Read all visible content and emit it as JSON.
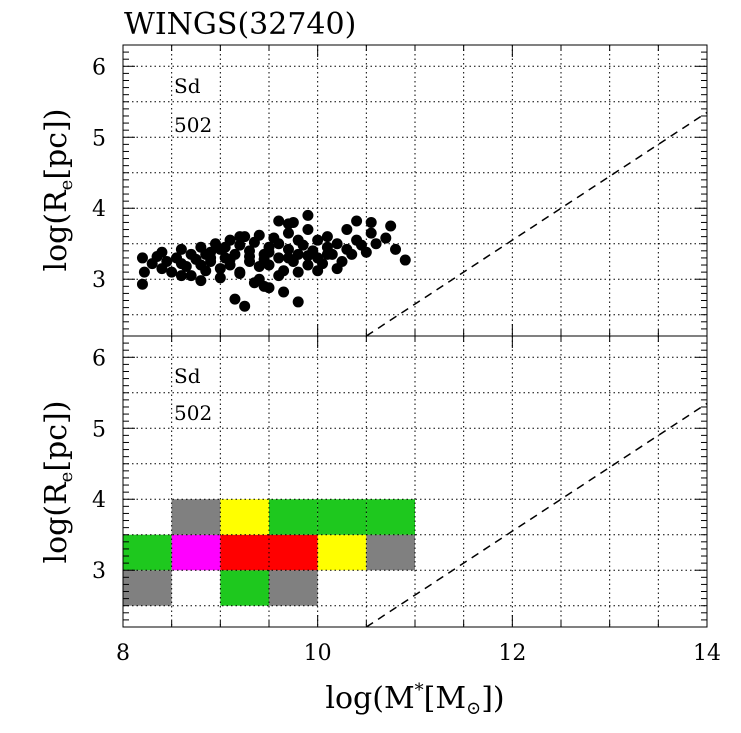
{
  "figure_title": "WINGS(32740)",
  "chart_data": [
    {
      "type": "scatter",
      "panel": "top",
      "ylabel_base": "log(R",
      "ylabel_sub": "e",
      "ylabel_tail": "[pc])",
      "xlim": [
        8,
        14
      ],
      "ylim": [
        2.2,
        6.3
      ],
      "x_gridlines": [
        8,
        8.5,
        9,
        9.5,
        10,
        10.5,
        11,
        11.5,
        12,
        12.5,
        13,
        13.5,
        14
      ],
      "y_gridlines": [
        2.5,
        3,
        3.5,
        4,
        4.5,
        5,
        5.5,
        6
      ],
      "ytick_labels": [
        "3",
        "4",
        "5",
        "6"
      ],
      "ytick_values": [
        3,
        4,
        5,
        6
      ],
      "annotation_type": "Sd",
      "annotation_count": "502",
      "dashed_line": {
        "x": [
          10.5,
          14
        ],
        "y": [
          2.2,
          5.35
        ]
      },
      "points_x": [
        8.2,
        8.22,
        8.2,
        8.3,
        8.35,
        8.4,
        8.45,
        8.4,
        8.5,
        8.55,
        8.6,
        8.6,
        8.65,
        8.7,
        8.7,
        8.75,
        8.8,
        8.8,
        8.85,
        8.9,
        8.9,
        8.95,
        9.0,
        9.0,
        9.05,
        9.1,
        9.1,
        9.15,
        9.2,
        9.2,
        9.25,
        9.3,
        9.3,
        9.35,
        9.4,
        9.4,
        9.45,
        9.5,
        9.5,
        9.55,
        9.6,
        9.6,
        9.65,
        9.7,
        9.7,
        9.75,
        9.8,
        9.8,
        9.85,
        9.9,
        9.9,
        9.95,
        10.0,
        10.0,
        10.05,
        10.1,
        10.1,
        10.15,
        10.2,
        10.25,
        10.3,
        10.3,
        10.35,
        10.4,
        10.45,
        10.5,
        10.55,
        10.6,
        10.7,
        10.75,
        10.8,
        10.9,
        8.6,
        8.8,
        9.0,
        9.2,
        9.4,
        9.6,
        9.8,
        10.0,
        10.2,
        8.9,
        9.1,
        9.3,
        9.5,
        9.7,
        9.9,
        10.1,
        9.15,
        9.35,
        9.5,
        9.65,
        9.8,
        9.25,
        9.45,
        9.7,
        9.75,
        8.85,
        9.05,
        9.9,
        9.6,
        10.4,
        10.55,
        9.45,
        9.2
      ],
      "points_y": [
        3.3,
        3.1,
        2.93,
        3.22,
        3.32,
        3.15,
        3.25,
        3.38,
        3.1,
        3.3,
        3.22,
        3.42,
        3.18,
        3.35,
        3.05,
        3.28,
        3.2,
        3.45,
        3.12,
        3.38,
        3.25,
        3.5,
        3.15,
        3.42,
        3.3,
        3.55,
        3.2,
        3.35,
        3.48,
        3.1,
        3.6,
        3.25,
        3.4,
        3.52,
        3.18,
        3.62,
        3.35,
        3.45,
        3.2,
        3.58,
        3.3,
        3.5,
        3.12,
        3.42,
        3.65,
        3.25,
        3.55,
        3.35,
        3.48,
        3.2,
        3.7,
        3.4,
        3.3,
        3.55,
        3.22,
        3.45,
        3.6,
        3.35,
        3.5,
        3.25,
        3.42,
        3.7,
        3.35,
        3.55,
        3.48,
        3.38,
        3.65,
        3.5,
        3.58,
        3.75,
        3.42,
        3.27,
        3.05,
        2.98,
        3.02,
        3.08,
        3.0,
        3.05,
        3.1,
        3.12,
        3.15,
        3.3,
        3.28,
        3.32,
        3.38,
        3.3,
        3.33,
        3.35,
        2.72,
        2.95,
        2.88,
        2.82,
        2.68,
        2.62,
        2.9,
        3.78,
        3.8,
        3.35,
        3.45,
        3.9,
        3.82,
        3.82,
        3.8,
        3.28,
        3.6
      ],
      "marker_color": "#000000"
    },
    {
      "type": "heatmap",
      "panel": "bottom",
      "ylabel_base": "log(R",
      "ylabel_sub": "e",
      "ylabel_tail": "[pc])",
      "xlabel_base": "log(M",
      "xlabel_sup": "*",
      "xlabel_mid": "[M",
      "xlabel_sub": "⊙",
      "xlabel_tail": "])",
      "xlim": [
        8,
        14
      ],
      "ylim": [
        2.2,
        6.3
      ],
      "xtick_labels": [
        "8",
        "10",
        "12",
        "14"
      ],
      "xtick_values": [
        8,
        10,
        12,
        14
      ],
      "ytick_labels": [
        "3",
        "4",
        "5",
        "6"
      ],
      "ytick_values": [
        3,
        4,
        5,
        6
      ],
      "annotation_type": "Sd",
      "annotation_count": "502",
      "dashed_line": {
        "x": [
          10.5,
          14
        ],
        "y": [
          2.2,
          5.35
        ]
      },
      "bin_width": 0.5,
      "bin_height": 0.5,
      "cells": [
        {
          "x0": 8.0,
          "y0": 2.5,
          "color": "#808080"
        },
        {
          "x0": 8.5,
          "y0": 2.5,
          "color": "#ffffff"
        },
        {
          "x0": 9.0,
          "y0": 2.5,
          "color": "#1ec81e"
        },
        {
          "x0": 9.5,
          "y0": 2.5,
          "color": "#808080"
        },
        {
          "x0": 8.0,
          "y0": 3.0,
          "color": "#1ec81e"
        },
        {
          "x0": 8.5,
          "y0": 3.0,
          "color": "#ff00ff"
        },
        {
          "x0": 9.0,
          "y0": 3.0,
          "color": "#ff0000"
        },
        {
          "x0": 9.5,
          "y0": 3.0,
          "color": "#ff0000"
        },
        {
          "x0": 10.0,
          "y0": 3.0,
          "color": "#ffff00"
        },
        {
          "x0": 10.5,
          "y0": 3.0,
          "color": "#808080"
        },
        {
          "x0": 8.5,
          "y0": 3.5,
          "color": "#808080"
        },
        {
          "x0": 9.0,
          "y0": 3.5,
          "color": "#ffff00"
        },
        {
          "x0": 9.5,
          "y0": 3.5,
          "color": "#1ec81e"
        },
        {
          "x0": 10.0,
          "y0": 3.5,
          "color": "#1ec81e"
        },
        {
          "x0": 10.5,
          "y0": 3.5,
          "color": "#1ec81e"
        }
      ]
    }
  ]
}
